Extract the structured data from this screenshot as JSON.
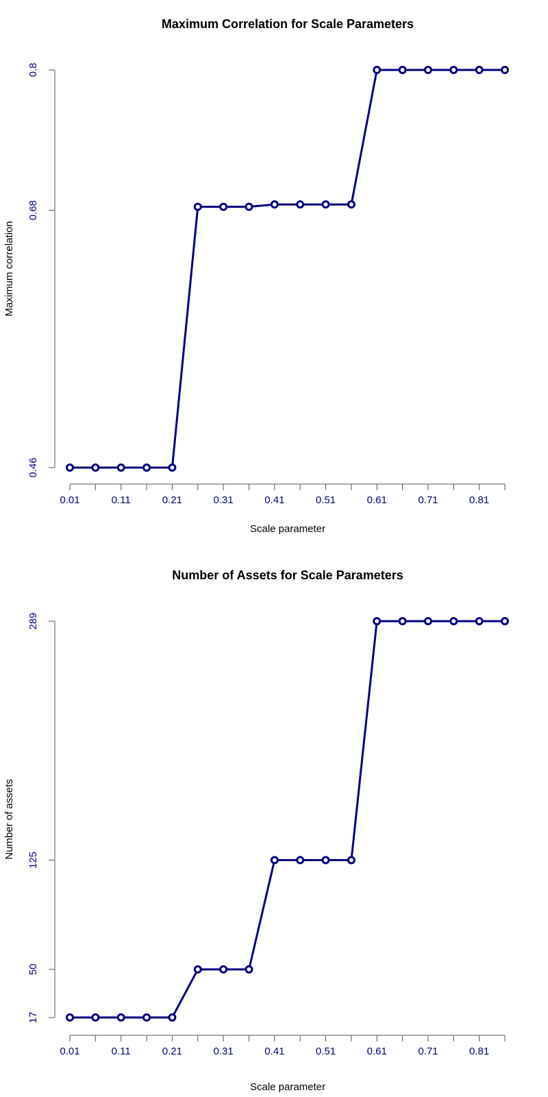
{
  "colors": {
    "series": "#000080",
    "tick_labels": "#000080"
  },
  "chart_data": [
    {
      "type": "line",
      "title": "Maximum Correlation for Scale Parameters",
      "xlabel": "Scale parameter",
      "ylabel": "Maximum correlation",
      "x": [
        0.01,
        0.06,
        0.11,
        0.16,
        0.21,
        0.26,
        0.31,
        0.36,
        0.41,
        0.46,
        0.51,
        0.56,
        0.61,
        0.66,
        0.71,
        0.76,
        0.81,
        0.86
      ],
      "x_tick_labels": [
        "0.01",
        "0.11",
        "0.21",
        "0.31",
        "0.41",
        "0.51",
        "0.61",
        "0.71",
        "0.81"
      ],
      "y_ticks": [
        0.46,
        0.68,
        0.8
      ],
      "y_tick_labels": [
        "0.46",
        "0.68",
        "0.8"
      ],
      "ylim": [
        0.46,
        0.8
      ],
      "series": [
        {
          "values": [
            0.46,
            0.46,
            0.46,
            0.46,
            0.46,
            0.683,
            0.683,
            0.683,
            0.685,
            0.685,
            0.685,
            0.685,
            0.8,
            0.8,
            0.8,
            0.8,
            0.8,
            0.8
          ]
        }
      ]
    },
    {
      "type": "line",
      "title": "Number of Assets for Scale Parameters",
      "xlabel": "Scale parameter",
      "ylabel": "Number of assets",
      "x": [
        0.01,
        0.06,
        0.11,
        0.16,
        0.21,
        0.26,
        0.31,
        0.36,
        0.41,
        0.46,
        0.51,
        0.56,
        0.61,
        0.66,
        0.71,
        0.76,
        0.81,
        0.86
      ],
      "x_tick_labels": [
        "0.01",
        "0.11",
        "0.21",
        "0.31",
        "0.41",
        "0.51",
        "0.61",
        "0.71",
        "0.81"
      ],
      "y_ticks": [
        17,
        50,
        125,
        289
      ],
      "y_tick_labels": [
        "17",
        "50",
        "125",
        "289"
      ],
      "ylim": [
        17,
        289
      ],
      "series": [
        {
          "values": [
            17,
            17,
            17,
            17,
            17,
            50,
            50,
            50,
            125,
            125,
            125,
            125,
            289,
            289,
            289,
            289,
            289,
            289
          ]
        }
      ]
    }
  ]
}
